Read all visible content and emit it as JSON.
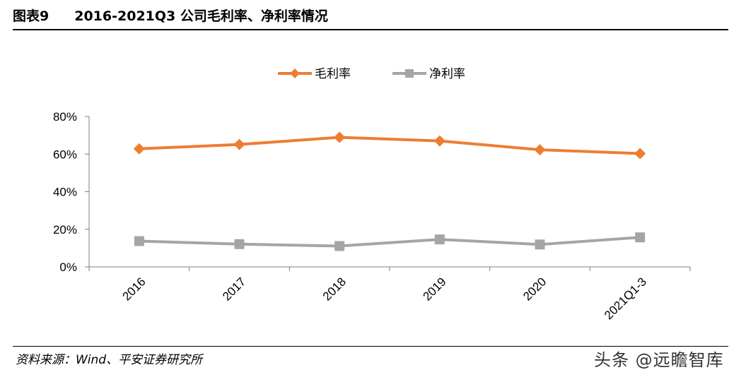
{
  "header": {
    "figure_label": "图表9",
    "title": "2016-2021Q3 公司毛利率、净利率情况"
  },
  "footer": {
    "source": "资料来源：Wind、平安证券研究所",
    "watermark": "头条 @远瞻智库"
  },
  "chart_data": {
    "type": "line",
    "categories": [
      "2016",
      "2017",
      "2018",
      "2019",
      "2020",
      "2021Q1-3"
    ],
    "series": [
      {
        "name": "毛利率",
        "values": [
          62.8,
          65.1,
          68.9,
          67.0,
          62.3,
          60.3
        ],
        "color": "#ED7D31",
        "marker": "diamond"
      },
      {
        "name": "净利率",
        "values": [
          13.7,
          12.1,
          11.1,
          14.6,
          11.9,
          15.7
        ],
        "color": "#A5A5A5",
        "marker": "square"
      }
    ],
    "ylim": [
      0,
      80
    ],
    "yticks": [
      "0%",
      "20%",
      "40%",
      "60%",
      "80%"
    ],
    "ytick_values": [
      0,
      20,
      40,
      60,
      80
    ],
    "legend_position": "top-center",
    "grid": false
  }
}
